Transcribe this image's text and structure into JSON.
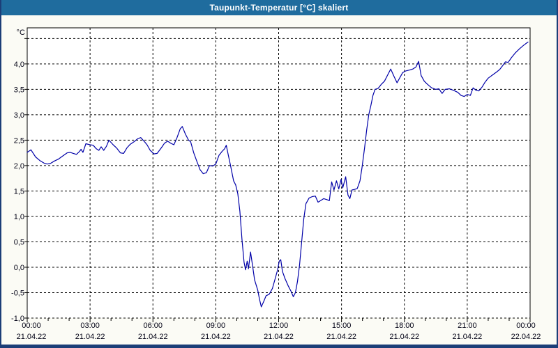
{
  "window": {
    "title": "Taupunkt-Temperatur [°C] skaliert"
  },
  "colors": {
    "titlebar_bg": "#1f6c9e",
    "frame": "#1c3e78",
    "window_bg": "#fbfbf5",
    "plot_bg": "#ffffff",
    "grid": "#000000",
    "text": "#000014",
    "line": "#0000a8"
  },
  "chart_data": {
    "type": "line",
    "title": "Taupunkt-Temperatur [°C] skaliert",
    "legend": "none",
    "grid": "dashed",
    "y_axis": {
      "unit": "°C",
      "min": -1.0,
      "max": 4.71,
      "gridline_values": [
        4.5,
        4.0,
        3.5,
        3.0,
        2.5,
        2.0,
        1.5,
        1.0,
        0.5,
        0.0,
        -0.5,
        -1.0
      ],
      "tick_labels": [
        {
          "value": 4.0,
          "label": "4,0"
        },
        {
          "value": 3.5,
          "label": "3,5"
        },
        {
          "value": 3.0,
          "label": "3,0"
        },
        {
          "value": 2.5,
          "label": "2,5"
        },
        {
          "value": 2.0,
          "label": "2,0"
        },
        {
          "value": 1.5,
          "label": "1,5"
        },
        {
          "value": 1.0,
          "label": "1,0"
        },
        {
          "value": 0.5,
          "label": "0,5"
        },
        {
          "value": 0.0,
          "label": "0,0"
        },
        {
          "value": -0.5,
          "label": "-0,5"
        },
        {
          "value": -1.0,
          "label": "-1,0"
        }
      ]
    },
    "x_axis": {
      "min_hours": 0,
      "max_hours": 24,
      "minor_tick_hours": 1,
      "major_ticks": [
        {
          "hours": 0,
          "time": "00:00",
          "date": "21.04.22"
        },
        {
          "hours": 3,
          "time": "03:00",
          "date": "21.04.22"
        },
        {
          "hours": 6,
          "time": "06:00",
          "date": "21.04.22"
        },
        {
          "hours": 9,
          "time": "09:00",
          "date": "21.04.22"
        },
        {
          "hours": 12,
          "time": "12:00",
          "date": "21.04.22"
        },
        {
          "hours": 15,
          "time": "15:00",
          "date": "21.04.22"
        },
        {
          "hours": 18,
          "time": "18:00",
          "date": "21.04.22"
        },
        {
          "hours": 21,
          "time": "21:00",
          "date": "21.04.22"
        },
        {
          "hours": 24,
          "time": "00:00",
          "date": "22.04.22"
        }
      ]
    },
    "series": [
      {
        "name": "Taupunkt-Temperatur",
        "color": "#0000a8",
        "points_time_value": [
          [
            0.0,
            2.26
          ],
          [
            0.18,
            2.31
          ],
          [
            0.4,
            2.17
          ],
          [
            0.6,
            2.1
          ],
          [
            0.8,
            2.05
          ],
          [
            0.95,
            2.03
          ],
          [
            1.1,
            2.04
          ],
          [
            1.3,
            2.09
          ],
          [
            1.5,
            2.13
          ],
          [
            1.7,
            2.19
          ],
          [
            1.9,
            2.25
          ],
          [
            2.05,
            2.26
          ],
          [
            2.2,
            2.24
          ],
          [
            2.35,
            2.22
          ],
          [
            2.5,
            2.28
          ],
          [
            2.57,
            2.32
          ],
          [
            2.66,
            2.26
          ],
          [
            2.8,
            2.43
          ],
          [
            3.0,
            2.41
          ],
          [
            3.15,
            2.4
          ],
          [
            3.3,
            2.33
          ],
          [
            3.42,
            2.3
          ],
          [
            3.53,
            2.37
          ],
          [
            3.65,
            2.3
          ],
          [
            3.78,
            2.38
          ],
          [
            3.9,
            2.5
          ],
          [
            4.1,
            2.41
          ],
          [
            4.26,
            2.35
          ],
          [
            4.45,
            2.25
          ],
          [
            4.6,
            2.24
          ],
          [
            4.76,
            2.35
          ],
          [
            4.92,
            2.42
          ],
          [
            5.1,
            2.47
          ],
          [
            5.28,
            2.53
          ],
          [
            5.42,
            2.55
          ],
          [
            5.6,
            2.47
          ],
          [
            5.72,
            2.41
          ],
          [
            5.87,
            2.3
          ],
          [
            6.05,
            2.23
          ],
          [
            6.2,
            2.24
          ],
          [
            6.4,
            2.35
          ],
          [
            6.55,
            2.44
          ],
          [
            6.7,
            2.48
          ],
          [
            6.85,
            2.44
          ],
          [
            7.0,
            2.41
          ],
          [
            7.15,
            2.55
          ],
          [
            7.3,
            2.72
          ],
          [
            7.4,
            2.77
          ],
          [
            7.55,
            2.62
          ],
          [
            7.7,
            2.5
          ],
          [
            7.8,
            2.47
          ],
          [
            7.95,
            2.25
          ],
          [
            8.1,
            2.08
          ],
          [
            8.25,
            1.92
          ],
          [
            8.4,
            1.84
          ],
          [
            8.55,
            1.86
          ],
          [
            8.7,
            2.0
          ],
          [
            8.85,
            1.99
          ],
          [
            9.0,
            2.03
          ],
          [
            9.15,
            2.2
          ],
          [
            9.3,
            2.28
          ],
          [
            9.42,
            2.33
          ],
          [
            9.5,
            2.4
          ],
          [
            9.6,
            2.2
          ],
          [
            9.7,
            2.01
          ],
          [
            9.85,
            1.7
          ],
          [
            9.95,
            1.62
          ],
          [
            10.05,
            1.45
          ],
          [
            10.15,
            1.1
          ],
          [
            10.25,
            0.55
          ],
          [
            10.35,
            0.1
          ],
          [
            10.42,
            -0.05
          ],
          [
            10.5,
            0.12
          ],
          [
            10.56,
            -0.03
          ],
          [
            10.66,
            0.3
          ],
          [
            10.75,
            0.05
          ],
          [
            10.85,
            -0.25
          ],
          [
            11.0,
            -0.45
          ],
          [
            11.08,
            -0.62
          ],
          [
            11.17,
            -0.78
          ],
          [
            11.28,
            -0.68
          ],
          [
            11.4,
            -0.56
          ],
          [
            11.55,
            -0.53
          ],
          [
            11.7,
            -0.42
          ],
          [
            11.85,
            -0.2
          ],
          [
            11.95,
            -0.05
          ],
          [
            12.03,
            0.12
          ],
          [
            12.1,
            0.15
          ],
          [
            12.18,
            -0.08
          ],
          [
            12.3,
            -0.22
          ],
          [
            12.45,
            -0.36
          ],
          [
            12.6,
            -0.48
          ],
          [
            12.7,
            -0.58
          ],
          [
            12.8,
            -0.5
          ],
          [
            12.9,
            -0.28
          ],
          [
            13.0,
            0.05
          ],
          [
            13.1,
            0.5
          ],
          [
            13.2,
            0.95
          ],
          [
            13.3,
            1.25
          ],
          [
            13.45,
            1.36
          ],
          [
            13.6,
            1.39
          ],
          [
            13.75,
            1.4
          ],
          [
            13.88,
            1.28
          ],
          [
            14.0,
            1.31
          ],
          [
            14.15,
            1.35
          ],
          [
            14.3,
            1.33
          ],
          [
            14.42,
            1.31
          ],
          [
            14.53,
            1.68
          ],
          [
            14.64,
            1.52
          ],
          [
            14.76,
            1.7
          ],
          [
            14.87,
            1.54
          ],
          [
            14.98,
            1.73
          ],
          [
            15.06,
            1.56
          ],
          [
            15.2,
            1.78
          ],
          [
            15.31,
            1.42
          ],
          [
            15.4,
            1.35
          ],
          [
            15.5,
            1.52
          ],
          [
            15.62,
            1.53
          ],
          [
            15.75,
            1.55
          ],
          [
            15.88,
            1.7
          ],
          [
            15.98,
            1.97
          ],
          [
            16.1,
            2.35
          ],
          [
            16.2,
            2.7
          ],
          [
            16.3,
            3.0
          ],
          [
            16.4,
            3.18
          ],
          [
            16.5,
            3.38
          ],
          [
            16.6,
            3.5
          ],
          [
            16.75,
            3.52
          ],
          [
            16.9,
            3.6
          ],
          [
            17.05,
            3.66
          ],
          [
            17.2,
            3.78
          ],
          [
            17.35,
            3.9
          ],
          [
            17.5,
            3.76
          ],
          [
            17.65,
            3.63
          ],
          [
            17.8,
            3.74
          ],
          [
            17.92,
            3.83
          ],
          [
            18.05,
            3.86
          ],
          [
            18.25,
            3.88
          ],
          [
            18.4,
            3.9
          ],
          [
            18.55,
            3.94
          ],
          [
            18.68,
            4.05
          ],
          [
            18.8,
            3.77
          ],
          [
            18.95,
            3.66
          ],
          [
            19.1,
            3.6
          ],
          [
            19.3,
            3.53
          ],
          [
            19.5,
            3.5
          ],
          [
            19.65,
            3.51
          ],
          [
            19.8,
            3.42
          ],
          [
            19.95,
            3.5
          ],
          [
            20.15,
            3.51
          ],
          [
            20.35,
            3.48
          ],
          [
            20.55,
            3.44
          ],
          [
            20.7,
            3.38
          ],
          [
            20.85,
            3.36
          ],
          [
            21.0,
            3.4
          ],
          [
            21.15,
            3.38
          ],
          [
            21.28,
            3.53
          ],
          [
            21.42,
            3.48
          ],
          [
            21.55,
            3.47
          ],
          [
            21.7,
            3.54
          ],
          [
            21.85,
            3.64
          ],
          [
            22.0,
            3.72
          ],
          [
            22.2,
            3.78
          ],
          [
            22.4,
            3.84
          ],
          [
            22.55,
            3.89
          ],
          [
            22.7,
            3.97
          ],
          [
            22.82,
            4.04
          ],
          [
            22.95,
            4.03
          ],
          [
            23.1,
            4.12
          ],
          [
            23.3,
            4.22
          ],
          [
            23.5,
            4.3
          ],
          [
            23.7,
            4.37
          ],
          [
            23.9,
            4.43
          ]
        ]
      }
    ]
  }
}
